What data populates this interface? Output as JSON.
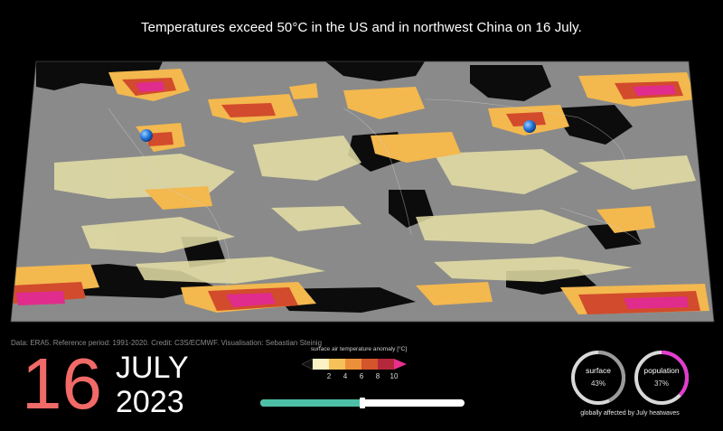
{
  "headline": "Temperatures exceed 50°C in the US and in northwest China on 16 July.",
  "credit": "Data: ERA5. Reference period: 1991-2020. Credit: C3S/ECMWF. Visualisation: Sebastian Steinig",
  "date": {
    "day": "16",
    "month": "JULY",
    "year": "2023"
  },
  "legend": {
    "title": "surface air temperature anomaly [°C]",
    "ticks": [
      "2",
      "4",
      "6",
      "8",
      "10"
    ],
    "colors": [
      "#fbf3c4",
      "#f7c15a",
      "#ec8f3a",
      "#d2552c",
      "#b5283a",
      "#e9308e"
    ]
  },
  "timeline": {
    "progress": 0.5
  },
  "indicators": [
    {
      "label": "surface",
      "value": "43%",
      "fraction": 0.43,
      "color": "#9a9a9a"
    },
    {
      "label": "population",
      "value": "37%",
      "fraction": 0.37,
      "color": "#e43bd0"
    }
  ],
  "indicators_caption": "globally affected by July heatwaves",
  "map": {
    "markers": [
      "us-50c-marker",
      "china-50c-marker"
    ],
    "colors": {
      "land": "#8d8d8d",
      "cold": "#0b0b0b",
      "mild": "#e6e0a6",
      "warm": "#f3b84e",
      "hot": "#d24b2c",
      "extreme": "#e02c8c"
    }
  }
}
